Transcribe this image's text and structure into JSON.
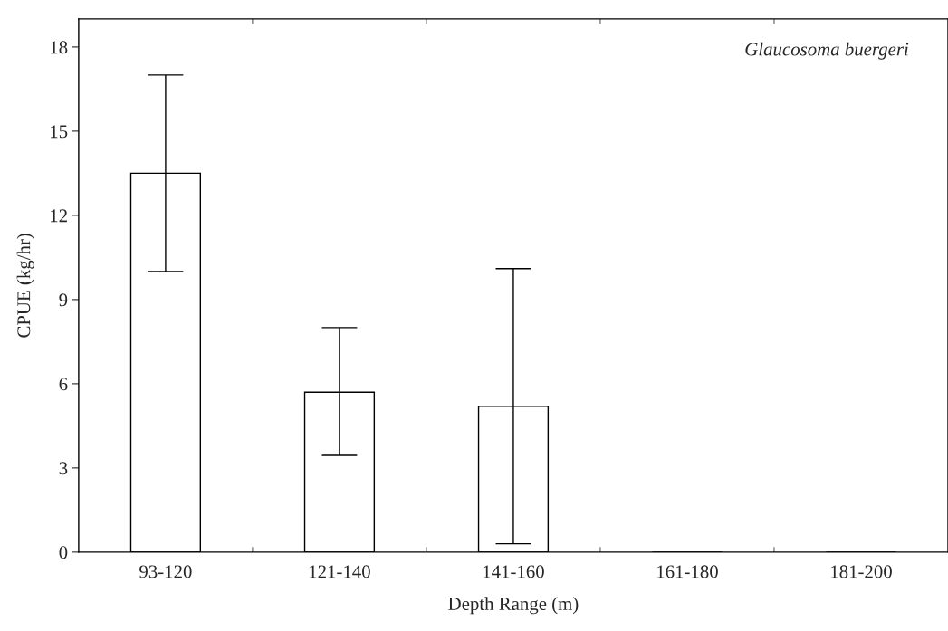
{
  "chart_data": {
    "type": "bar",
    "categories": [
      "93-120",
      "121-140",
      "141-160",
      "161-180",
      "181-200"
    ],
    "values": [
      13.5,
      5.7,
      5.2,
      0,
      0
    ],
    "errors": [
      [
        10.0,
        17.0
      ],
      [
        3.45,
        8.0
      ],
      [
        0.3,
        10.1
      ],
      null,
      null
    ],
    "color": "#ffffff",
    "xlabel": "Depth Range (m)",
    "ylabel": "CPUE (kg/hr)",
    "ylim": [
      0,
      19
    ],
    "yticks": [
      0,
      3,
      6,
      9,
      12,
      15,
      18
    ],
    "annotations": [
      "Glaucosoma buergeri"
    ],
    "grid": false,
    "legend": false
  }
}
